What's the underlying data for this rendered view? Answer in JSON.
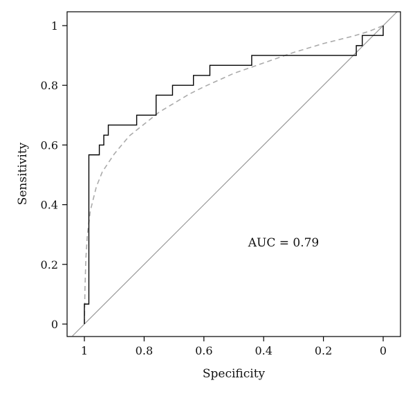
{
  "chart_data": {
    "type": "line",
    "title": "",
    "xlabel": "Specificity",
    "ylabel": "Sensitivity",
    "xlim": [
      1.04,
      -0.06
    ],
    "ylim": [
      -0.04,
      1.05
    ],
    "x_reversed": true,
    "grid": false,
    "legend": "none",
    "x_ticks": [
      {
        "value": 1,
        "label": "1"
      },
      {
        "value": 0.8,
        "label": "0.8"
      },
      {
        "value": 0.6,
        "label": "0.6"
      },
      {
        "value": 0.4,
        "label": "0.4"
      },
      {
        "value": 0.2,
        "label": "0.2"
      },
      {
        "value": 0,
        "label": "0"
      }
    ],
    "y_ticks": [
      {
        "value": 0,
        "label": "0"
      },
      {
        "value": 0.2,
        "label": "0.2"
      },
      {
        "value": 0.4,
        "label": "0.4"
      },
      {
        "value": 0.6,
        "label": "0.6"
      },
      {
        "value": 0.8,
        "label": "0.8"
      },
      {
        "value": 1,
        "label": "1"
      }
    ],
    "annotation": "AUC = 0.79",
    "colors": {
      "empirical": "#000000",
      "smoothed": "#aaaaaa",
      "diagonal": "#999999",
      "axes": "#000000"
    },
    "series": [
      {
        "id": "empirical-roc",
        "style": "step",
        "points": [
          [
            1.0,
            0.0
          ],
          [
            1.0,
            0.067
          ],
          [
            0.985,
            0.067
          ],
          [
            0.985,
            0.567
          ],
          [
            0.95,
            0.567
          ],
          [
            0.95,
            0.6
          ],
          [
            0.935,
            0.6
          ],
          [
            0.935,
            0.633
          ],
          [
            0.92,
            0.633
          ],
          [
            0.92,
            0.667
          ],
          [
            0.825,
            0.667
          ],
          [
            0.825,
            0.7
          ],
          [
            0.76,
            0.7
          ],
          [
            0.76,
            0.767
          ],
          [
            0.705,
            0.767
          ],
          [
            0.705,
            0.8
          ],
          [
            0.635,
            0.8
          ],
          [
            0.635,
            0.833
          ],
          [
            0.58,
            0.833
          ],
          [
            0.58,
            0.867
          ],
          [
            0.44,
            0.867
          ],
          [
            0.44,
            0.9
          ],
          [
            0.09,
            0.9
          ],
          [
            0.09,
            0.933
          ],
          [
            0.07,
            0.933
          ],
          [
            0.07,
            0.967
          ],
          [
            0.0,
            0.967
          ],
          [
            0.0,
            1.0
          ]
        ]
      },
      {
        "id": "smoothed-roc",
        "style": "dashed",
        "points": [
          [
            1.0,
            0.0
          ],
          [
            0.998,
            0.12
          ],
          [
            0.995,
            0.22
          ],
          [
            0.99,
            0.3
          ],
          [
            0.98,
            0.38
          ],
          [
            0.96,
            0.46
          ],
          [
            0.94,
            0.51
          ],
          [
            0.9,
            0.57
          ],
          [
            0.85,
            0.63
          ],
          [
            0.8,
            0.67
          ],
          [
            0.75,
            0.71
          ],
          [
            0.7,
            0.74
          ],
          [
            0.65,
            0.77
          ],
          [
            0.6,
            0.795
          ],
          [
            0.5,
            0.84
          ],
          [
            0.4,
            0.875
          ],
          [
            0.3,
            0.91
          ],
          [
            0.2,
            0.94
          ],
          [
            0.1,
            0.965
          ],
          [
            0.05,
            0.98
          ],
          [
            0.0,
            1.0
          ]
        ]
      },
      {
        "id": "chance-diagonal",
        "style": "line",
        "points": [
          [
            1.04,
            -0.04
          ],
          [
            -0.05,
            1.05
          ]
        ]
      }
    ]
  }
}
